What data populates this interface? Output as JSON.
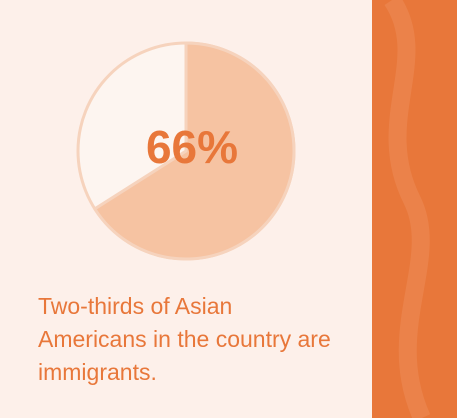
{
  "chart_data": {
    "type": "pie",
    "values": [
      66
    ],
    "value_labels": [
      "66%"
    ],
    "color": "#f6c3a2",
    "caption": "Two-thirds of Asian Americans in the country are immigrants."
  }
}
